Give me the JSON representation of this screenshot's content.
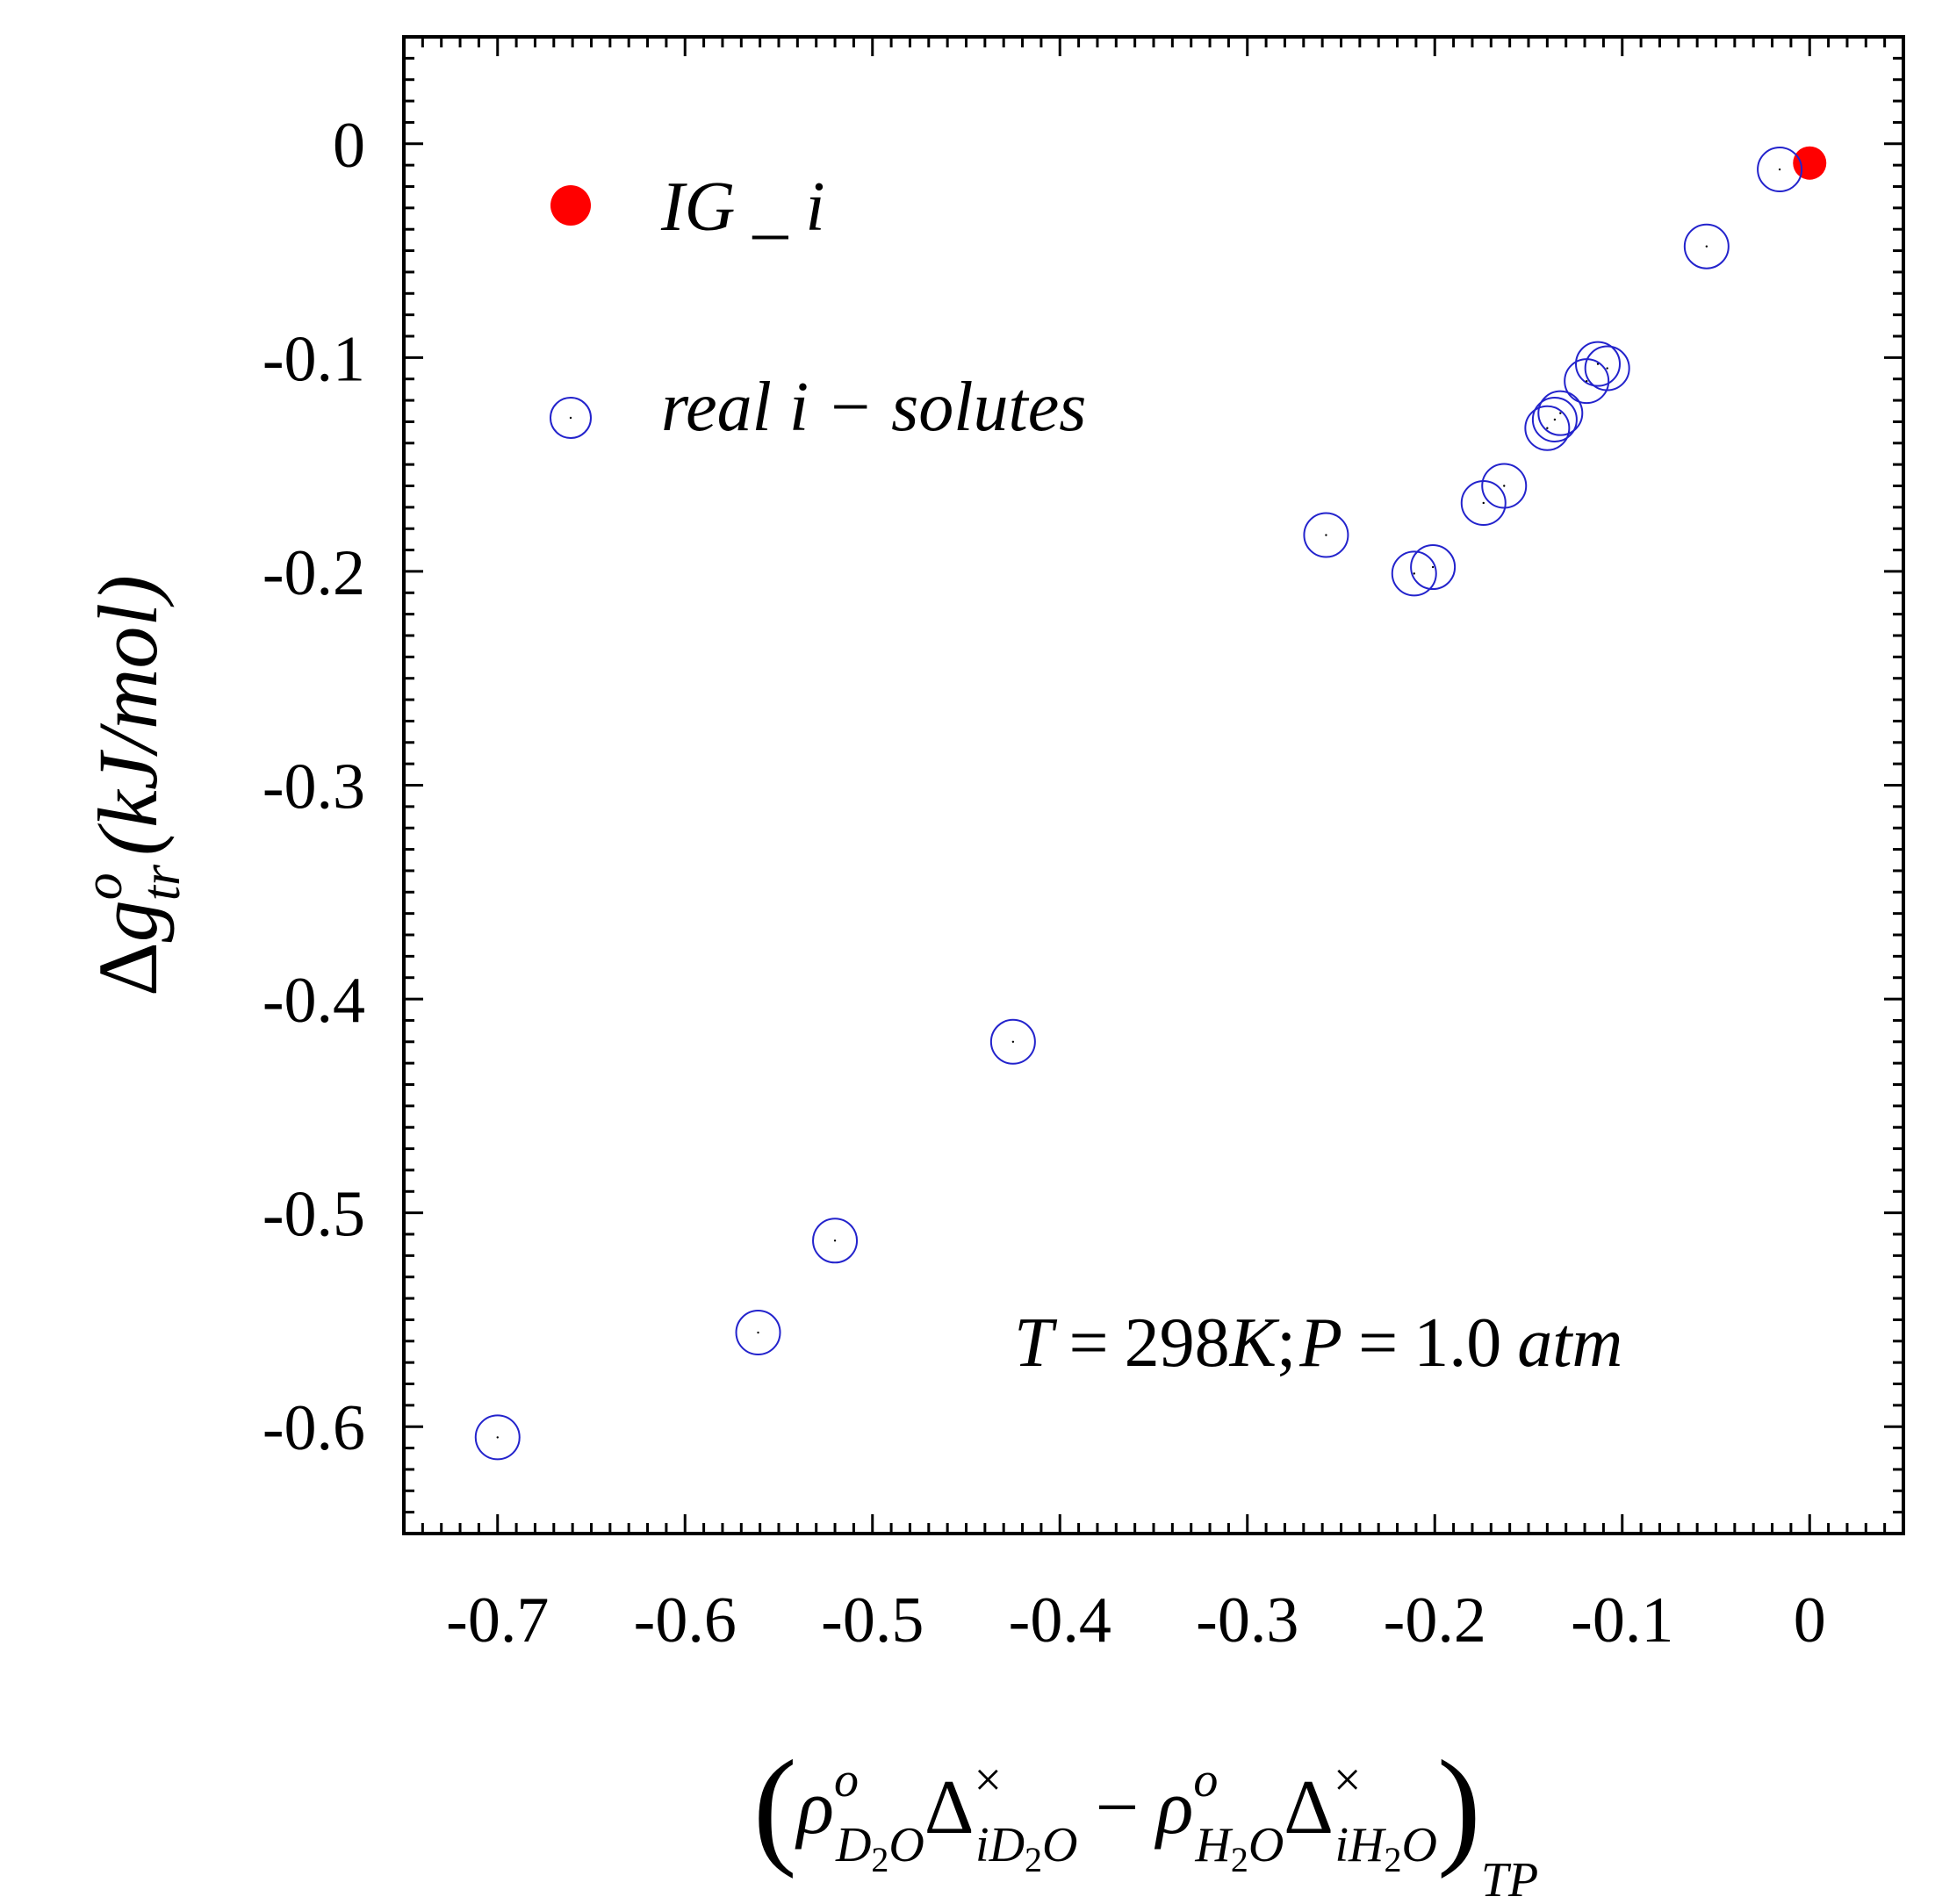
{
  "chart_data": {
    "type": "scatter",
    "title": "",
    "xlabel": {
      "open": "(",
      "rho1": "ρ",
      "rho1_sup": "o",
      "rho1_sub": "D",
      "rho1_sub_n": "2",
      "rho1_sub_o": "O",
      "delta1": "Δ",
      "delta1_sup": "×",
      "delta1_sub": "iD",
      "delta1_sub_n": "2",
      "delta1_sub_o": "O",
      "minus": "−",
      "rho2": "ρ",
      "rho2_sup": "o",
      "rho2_sub": "H",
      "rho2_sub_n": "2",
      "rho2_sub_o": "O",
      "delta2": "Δ",
      "delta2_sup": "×",
      "delta2_sub": "iH",
      "delta2_sub_n": "2",
      "delta2_sub_o": "O",
      "close": ")",
      "outer_sub": "TP"
    },
    "ylabel": {
      "delta": "Δ",
      "g": "g",
      "sup": "o",
      "sub": "tr",
      "unit": "(kJ/mol)"
    },
    "xlim": [
      -0.75,
      0.05
    ],
    "ylim": [
      -0.65,
      0.05
    ],
    "xticks": [
      "-0.7",
      "-0.6",
      "-0.5",
      "-0.4",
      "-0.3",
      "-0.2",
      "-0.1",
      "0"
    ],
    "yticks": [
      "0",
      "-0.1",
      "-0.2",
      "-0.3",
      "-0.4",
      "-0.5",
      "-0.6"
    ],
    "legend_position": "top-left",
    "series": [
      {
        "name": "IG _ i",
        "marker": "filled-circle",
        "color": "#ff0000",
        "points": [
          [
            0.0,
            -0.009
          ]
        ]
      },
      {
        "name": "real i − solutes",
        "marker": "open-circle",
        "color": "#2323cc",
        "points": [
          [
            -0.7,
            -0.605
          ],
          [
            -0.561,
            -0.556
          ],
          [
            -0.52,
            -0.513
          ],
          [
            -0.425,
            -0.42
          ],
          [
            -0.258,
            -0.183
          ],
          [
            -0.211,
            -0.201
          ],
          [
            -0.201,
            -0.198
          ],
          [
            -0.174,
            -0.168
          ],
          [
            -0.163,
            -0.16
          ],
          [
            -0.133,
            -0.126
          ],
          [
            -0.136,
            -0.129
          ],
          [
            -0.14,
            -0.133
          ],
          [
            -0.108,
            -0.105
          ],
          [
            -0.113,
            -0.103
          ],
          [
            -0.119,
            -0.111
          ],
          [
            -0.055,
            -0.048
          ],
          [
            -0.016,
            -0.012
          ]
        ]
      }
    ],
    "annotation": {
      "T": "T",
      "eq1": "=",
      "Tval": "298",
      "K": "K",
      "semi": ";",
      "P": "P",
      "eq2": "=",
      "Pval": "1.0",
      "atm": "atm"
    }
  }
}
